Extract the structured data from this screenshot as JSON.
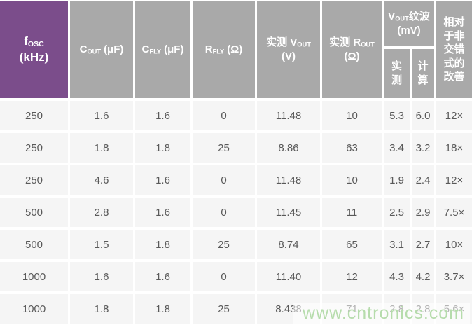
{
  "table": {
    "header": {
      "fosc": {
        "symbol": "f",
        "sub": "OSC",
        "unit": "(kHz)"
      },
      "cout": {
        "symbol": "C",
        "sub": "OUT",
        "unit": "(μF)"
      },
      "cfly": {
        "symbol": "C",
        "sub": "FLY",
        "unit": "(μF)"
      },
      "rfly": {
        "symbol": "R",
        "sub": "FLY",
        "unit": "(Ω)"
      },
      "vout_measured": {
        "prefix": "实测 V",
        "sub": "OUT",
        "unit": "(V)"
      },
      "rout_measured": {
        "prefix": "实测 R",
        "sub": "OUT",
        "unit": "(Ω)"
      },
      "ripple": {
        "symbol": "V",
        "sub": "OUT",
        "suffix": "纹波 (mV)"
      },
      "ripple_sub_measured": "实测",
      "ripple_sub_calculated": "计算",
      "improvement": "相对于非交错式的改善"
    },
    "rows": [
      [
        "250",
        "1.6",
        "1.6",
        "0",
        "11.48",
        "10",
        "5.3",
        "6.0",
        "12×"
      ],
      [
        "250",
        "1.8",
        "1.8",
        "25",
        "8.86",
        "63",
        "3.4",
        "3.2",
        "18×"
      ],
      [
        "250",
        "4.6",
        "1.6",
        "0",
        "11.48",
        "10",
        "1.9",
        "2.4",
        "12×"
      ],
      [
        "500",
        "2.8",
        "1.6",
        "0",
        "11.45",
        "11",
        "2.5",
        "2.9",
        "7.5×"
      ],
      [
        "500",
        "1.5",
        "1.8",
        "25",
        "8.74",
        "65",
        "3.1",
        "2.7",
        "10×"
      ],
      [
        "1000",
        "1.6",
        "1.6",
        "0",
        "11.40",
        "12",
        "4.3",
        "4.2",
        "3.7×"
      ],
      [
        "1000",
        "1.8",
        "1.8",
        "25",
        "8.438",
        "71",
        "2.8",
        "2.8",
        "5.6×"
      ]
    ]
  },
  "watermark": {
    "text": "www.cntronics.com"
  },
  "colors": {
    "purple": "#7b4d8b",
    "header_gray": "#a9a9a9",
    "row_bg": "#f5f5f5",
    "data_text": "#595959",
    "watermark_green": "#b6dcac"
  }
}
